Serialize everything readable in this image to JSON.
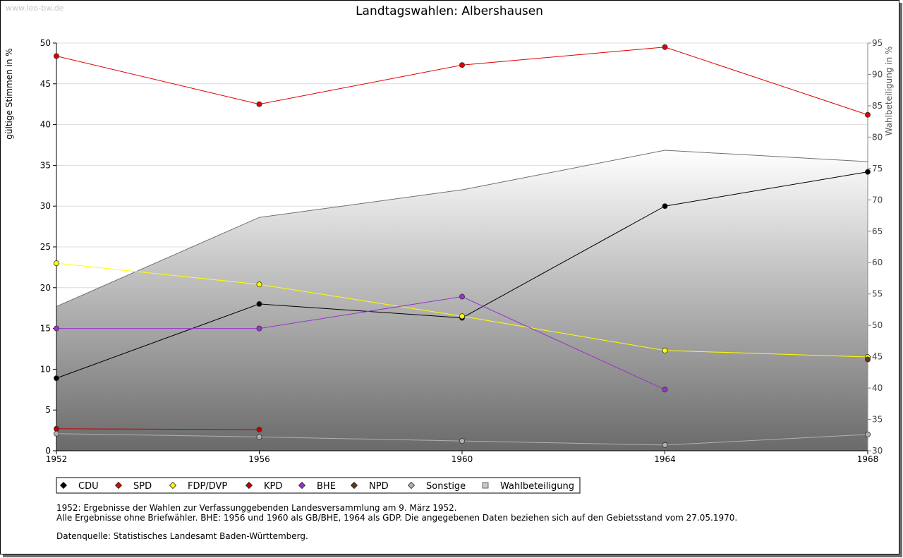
{
  "site": "www.leo-bw.de",
  "chart_data": {
    "type": "line",
    "title": "Landtagswahlen: Albershausen",
    "x": [
      1952,
      1956,
      1960,
      1964,
      1968
    ],
    "xlim": [
      1952,
      1968
    ],
    "ylabel": "gültige Stimmen in %",
    "ylim": [
      0,
      50
    ],
    "y_ticks": [
      0,
      5,
      10,
      15,
      20,
      25,
      30,
      35,
      40,
      45,
      50
    ],
    "y2label": "Wahlbeteiligung in %",
    "y2lim": [
      30,
      95
    ],
    "y2_ticks": [
      30,
      35,
      40,
      45,
      50,
      55,
      60,
      65,
      70,
      75,
      80,
      85,
      90,
      95
    ],
    "grid": true,
    "legend_position": "bottom",
    "series": [
      {
        "name": "Wahlbeteiligung",
        "type": "area",
        "axis": "right",
        "values": [
          53,
          67.2,
          71.6,
          77.9,
          76.1
        ],
        "color": "#777777"
      },
      {
        "name": "CDU",
        "axis": "left",
        "values": [
          8.9,
          18.0,
          16.3,
          30.0,
          34.2
        ],
        "color": "#000000"
      },
      {
        "name": "SPD",
        "axis": "left",
        "values": [
          48.4,
          42.5,
          47.3,
          49.5,
          41.2
        ],
        "color": "#e00000"
      },
      {
        "name": "FDP/DVP",
        "axis": "left",
        "values": [
          23.0,
          20.4,
          16.5,
          12.3,
          11.5
        ],
        "color": "#ffff00"
      },
      {
        "name": "KPD",
        "axis": "left",
        "values": [
          2.7,
          2.6,
          null,
          null,
          null
        ],
        "color": "#c00000"
      },
      {
        "name": "BHE",
        "axis": "left",
        "values": [
          15.0,
          15.0,
          18.9,
          7.5,
          null
        ],
        "color": "#9933cc"
      },
      {
        "name": "NPD",
        "axis": "left",
        "values": [
          null,
          null,
          null,
          null,
          11.2
        ],
        "color": "#5c3a1e"
      },
      {
        "name": "Sonstige",
        "axis": "left",
        "values": [
          2.1,
          1.7,
          1.2,
          0.7,
          2.0
        ],
        "color": "#b0b0b0"
      }
    ]
  },
  "legend": [
    "CDU",
    "SPD",
    "FDP/DVP",
    "KPD",
    "BHE",
    "NPD",
    "Sonstige",
    "Wahlbeteiligung"
  ],
  "notes": {
    "line1": "1952: Ergebnisse der Wahlen zur Verfassunggebenden Landesversammlung am 9. März 1952.",
    "line2": "Alle Ergebnisse ohne Briefwähler. BHE: 1956 und 1960 als GB/BHE, 1964 als GDP. Die angegebenen Daten beziehen sich auf den Gebietsstand vom 27.05.1970.",
    "source": "Datenquelle: Statistisches Landesamt Baden-Württemberg."
  }
}
